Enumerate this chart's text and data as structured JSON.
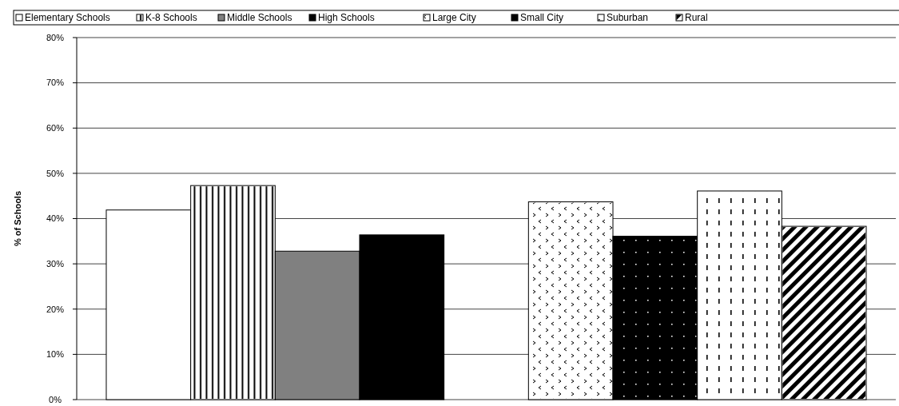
{
  "chart_data": {
    "type": "bar",
    "ylabel": "% of Schools",
    "categories": [
      null,
      null
    ],
    "series": [
      {
        "name": "Elementary Schools",
        "color": "#ffffff",
        "values": [
          41.9,
          null
        ]
      },
      {
        "name": "K-8 Schools",
        "color": "#ffffff",
        "values": [
          47.3,
          null
        ]
      },
      {
        "name": "Middle Schools",
        "color": "#808080",
        "values": [
          32.8,
          null
        ]
      },
      {
        "name": "High Schools",
        "color": "#000000",
        "values": [
          36.4,
          null
        ]
      },
      {
        "name": "Large City",
        "color": "#ffffff",
        "values": [
          null,
          43.7
        ]
      },
      {
        "name": "Small City",
        "color": "#000000",
        "values": [
          null,
          36.1
        ]
      },
      {
        "name": "Suburban",
        "color": "#ffffff",
        "values": [
          null,
          46.1
        ]
      },
      {
        "name": "Rural",
        "color": "#ffffff",
        "values": [
          null,
          38.3
        ]
      }
    ],
    "ylim": [
      0,
      80
    ],
    "yticks": [
      {
        "value": 0,
        "label": "0%"
      },
      {
        "value": 10,
        "label": "10%"
      },
      {
        "value": 20,
        "label": "20%"
      },
      {
        "value": 30,
        "label": "30%"
      },
      {
        "value": 40,
        "label": "40%"
      },
      {
        "value": 50,
        "label": "50%"
      },
      {
        "value": 60,
        "label": "60%"
      },
      {
        "value": 70,
        "label": "70%"
      },
      {
        "value": 80,
        "label": "80%"
      }
    ],
    "grid": "y",
    "legend": "top"
  }
}
